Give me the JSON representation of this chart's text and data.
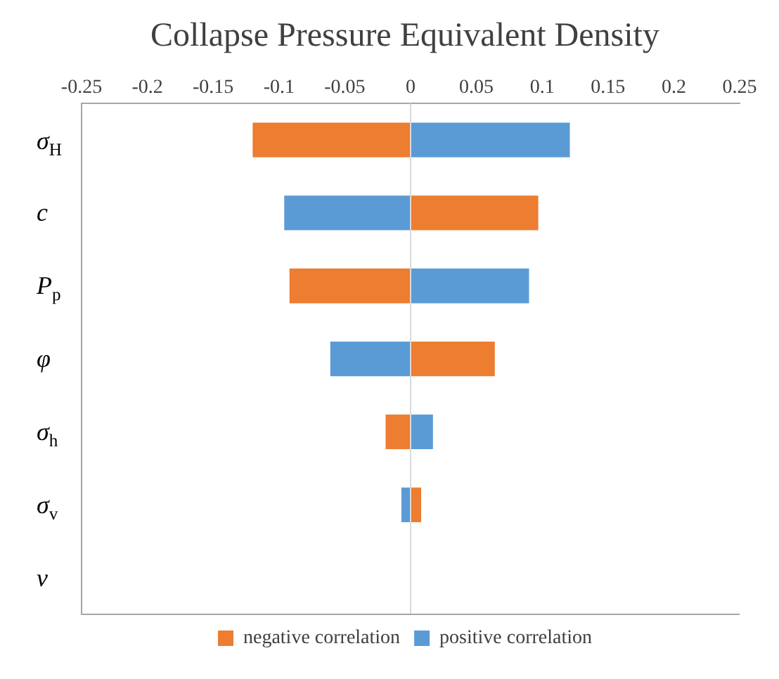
{
  "chart_data": {
    "type": "bar",
    "title": "Collapse Pressure Equivalent Density",
    "orientation": "horizontal",
    "stacked": true,
    "categories": [
      "σ$_{H}$",
      "c",
      "P$_{p}$",
      "φ",
      "σ$_{h}$",
      "σ$_{v}$",
      "ν"
    ],
    "series": [
      {
        "name": "negative correlation",
        "color": "#ed7d31",
        "values": [
          -0.12,
          0.097,
          -0.092,
          0.064,
          -0.019,
          0.008,
          null
        ]
      },
      {
        "name": "positive correlation",
        "color": "#5b9bd5",
        "values": [
          0.121,
          -0.096,
          0.09,
          -0.061,
          0.017,
          -0.007,
          null
        ]
      }
    ],
    "xlim": [
      -0.25,
      0.25
    ],
    "xticks": [
      -0.25,
      -0.2,
      -0.15,
      -0.1,
      -0.05,
      0,
      0.05,
      0.1,
      0.15,
      0.2,
      0.25
    ],
    "ref_lines": [
      {
        "axis": "x",
        "value": 0,
        "color": "#d9d9d9"
      }
    ],
    "grid": false,
    "legend": "bottom"
  }
}
